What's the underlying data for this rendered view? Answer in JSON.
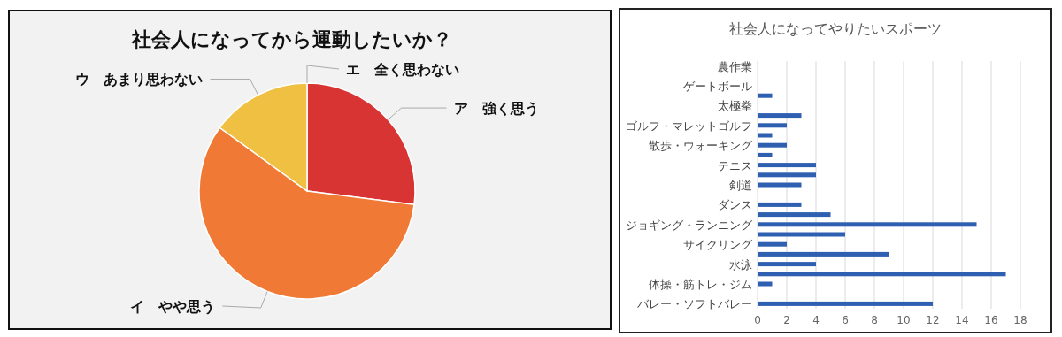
{
  "chart_data": [
    {
      "type": "pie",
      "title": "社会人になってから運動したいか？",
      "categories": [
        "ア　強く思う",
        "イ　やや思う",
        "ウ　あまり思わない",
        "エ　全く思わない"
      ],
      "values": [
        27,
        58,
        15,
        0
      ],
      "colors": [
        "#d93434",
        "#f07a35",
        "#efc042",
        "#9a1a1a"
      ]
    },
    {
      "type": "bar",
      "orientation": "horizontal",
      "title": "社会人になってやりたいスポーツ",
      "categories": [
        "農作業",
        null,
        "ゲートボール",
        null,
        "太極拳",
        null,
        "ゴルフ・マレットゴルフ",
        null,
        "散歩・ウォーキング",
        null,
        "テニス",
        null,
        "剣道",
        null,
        "ダンス",
        null,
        "ジョギング・ランニング",
        null,
        "サイクリング",
        null,
        "水泳",
        null,
        "体操・筋トレ・ジム",
        null,
        "バレー・ソフトバレー"
      ],
      "values": [
        0,
        0,
        0,
        1,
        0,
        3,
        2,
        1,
        2,
        1,
        4,
        4,
        3,
        0,
        3,
        5,
        15,
        6,
        2,
        9,
        4,
        17,
        1,
        0,
        12
      ],
      "color": "#2e5fb0",
      "xlim": [
        0,
        18
      ],
      "xticks": [
        0,
        2,
        4,
        6,
        8,
        10,
        12,
        14,
        16,
        18
      ],
      "grid": "x"
    }
  ]
}
